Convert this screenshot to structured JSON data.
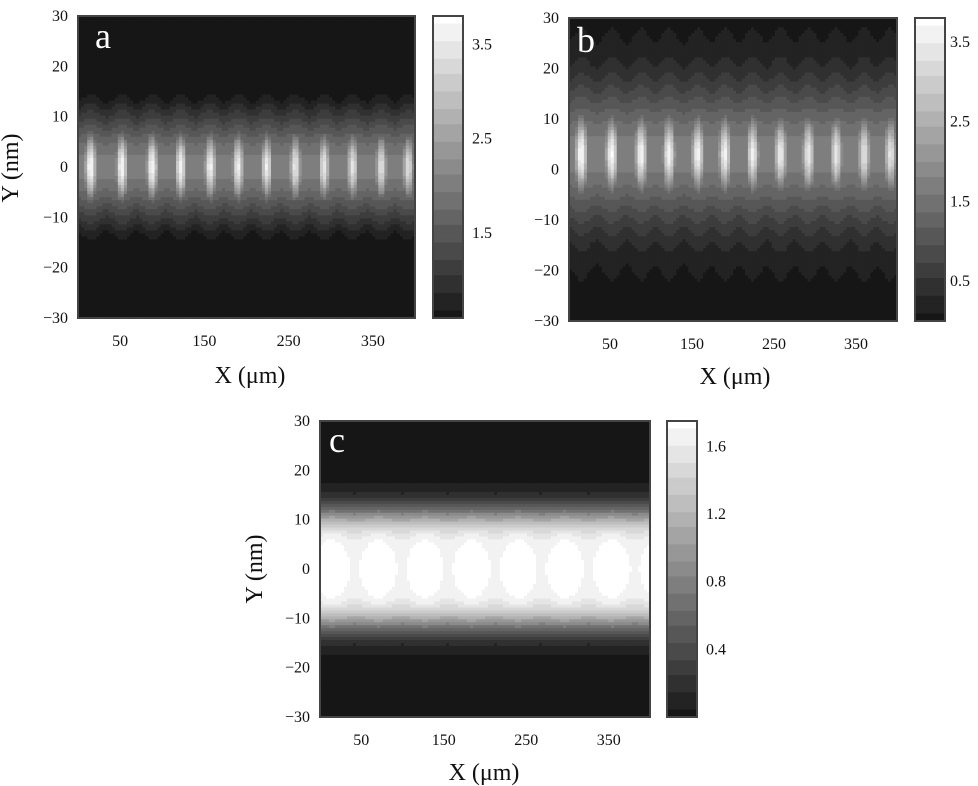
{
  "chart_data": [
    {
      "type": "heatmap",
      "panel_label": "a",
      "xlabel": "X (μm)",
      "ylabel": "Y (nm)",
      "xticks": [
        50,
        150,
        250,
        350
      ],
      "yticks": [
        30,
        20,
        10,
        0,
        -10,
        -20,
        -30
      ],
      "xlim": [
        0,
        400
      ],
      "ylim": [
        -30,
        30
      ],
      "colormap": "grayscale (black low, white high)",
      "colorbar_ticks": [
        "3.5",
        "2.5",
        "1.5"
      ],
      "colorbar_range": [
        0.6,
        3.8
      ],
      "pattern": {
        "kind": "periodic bright lobes along a central beam",
        "lobe_centers_x": [
          15,
          52,
          88,
          122,
          157,
          190,
          224,
          258,
          292,
          326,
          360,
          392
        ],
        "lobe_halfwidth_y": 10,
        "envelope_halfwidth_y": 14,
        "peak_value": 3.8,
        "envelope_value": 2.0
      }
    },
    {
      "type": "heatmap",
      "panel_label": "b",
      "xlabel": "X (μm)",
      "ylabel": "",
      "xticks": [
        50,
        150,
        250,
        350
      ],
      "yticks": [
        30,
        20,
        10,
        0,
        -10,
        -20,
        -30
      ],
      "xlim": [
        0,
        400
      ],
      "ylim": [
        -30,
        30
      ],
      "colormap": "grayscale (black low, white high)",
      "colorbar_ticks": [
        "3.5",
        "2.5",
        "1.5",
        "0.5"
      ],
      "colorbar_range": [
        0.0,
        3.8
      ],
      "pattern": {
        "kind": "periodic bright lobes along a central beam, slightly offset upward",
        "lobe_centers_x": [
          15,
          52,
          88,
          122,
          157,
          190,
          224,
          258,
          292,
          326,
          360,
          392
        ],
        "lobe_center_y": 3,
        "lobe_halfwidth_y": 10,
        "envelope_halfwidth_y": 15,
        "peak_value": 3.8,
        "envelope_value": 1.7
      }
    },
    {
      "type": "heatmap",
      "panel_label": "c",
      "xlabel": "X (μm)",
      "ylabel": "Y (nm)",
      "xticks": [
        50,
        150,
        250,
        350
      ],
      "yticks": [
        30,
        20,
        10,
        0,
        -10,
        -20,
        -30
      ],
      "xlim": [
        0,
        400
      ],
      "ylim": [
        -30,
        30
      ],
      "colormap": "grayscale (black low, white high)",
      "colorbar_ticks": [
        "1.6",
        "1.2",
        "0.8",
        "0.4"
      ],
      "colorbar_range": [
        0.0,
        1.75
      ],
      "pattern": {
        "kind": "uniform bright band",
        "band_halfwidth_y": 11,
        "edge_softness_y": 4,
        "peak_value": 1.75
      }
    }
  ]
}
